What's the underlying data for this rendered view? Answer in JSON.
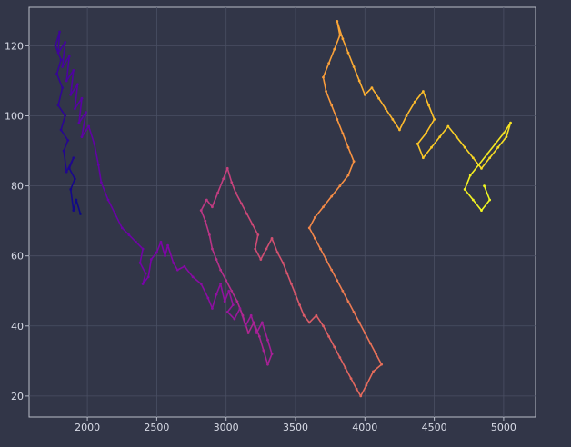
{
  "colors": {
    "background": "#323648",
    "plot_background": "#323648",
    "grid": "#4a4f63",
    "axes_frame": "#b9bdc9",
    "tick_text": "#d8dbe6",
    "colormap": "plasma"
  },
  "chart_data": {
    "type": "line",
    "title": "",
    "xlabel": "",
    "ylabel": "",
    "xlim": [
      1580,
      5230
    ],
    "ylim": [
      14,
      131
    ],
    "xticks": [
      2000,
      2500,
      3000,
      3500,
      4000,
      4500,
      5000
    ],
    "xtick_labels": [
      "2000",
      "2500",
      "3000",
      "3500",
      "4000",
      "4500",
      "5000"
    ],
    "yticks": [
      20,
      40,
      60,
      80,
      100,
      120
    ],
    "ytick_labels": [
      "20",
      "40",
      "60",
      "80",
      "100",
      "120"
    ],
    "grid": true,
    "legend": false,
    "color_encoding": "path progression, dark purple (start) to yellow (end)",
    "series": [
      {
        "points": [
          [
            1950,
            72
          ],
          [
            1920,
            76
          ],
          [
            1900,
            73
          ],
          [
            1880,
            79
          ],
          [
            1910,
            82
          ],
          [
            1870,
            85
          ],
          [
            1900,
            88
          ],
          [
            1850,
            84
          ],
          [
            1830,
            90
          ],
          [
            1860,
            93
          ],
          [
            1810,
            96
          ],
          [
            1840,
            100
          ],
          [
            1790,
            103
          ],
          [
            1820,
            108
          ],
          [
            1780,
            112
          ],
          [
            1810,
            116
          ],
          [
            1770,
            120
          ],
          [
            1800,
            124
          ],
          [
            1790,
            118
          ],
          [
            1840,
            121
          ],
          [
            1820,
            114
          ],
          [
            1870,
            117
          ],
          [
            1850,
            110
          ],
          [
            1900,
            113
          ],
          [
            1880,
            106
          ],
          [
            1930,
            109
          ],
          [
            1910,
            102
          ],
          [
            1960,
            105
          ],
          [
            1940,
            98
          ],
          [
            1990,
            101
          ],
          [
            1960,
            94
          ],
          [
            2010,
            97
          ],
          [
            2050,
            92
          ],
          [
            2080,
            86
          ],
          [
            2100,
            81
          ],
          [
            2150,
            76
          ],
          [
            2200,
            72
          ],
          [
            2250,
            68
          ],
          [
            2300,
            66
          ],
          [
            2350,
            64
          ],
          [
            2400,
            62
          ],
          [
            2380,
            58
          ],
          [
            2420,
            55
          ],
          [
            2400,
            52
          ],
          [
            2440,
            54
          ],
          [
            2460,
            59
          ],
          [
            2500,
            61
          ],
          [
            2530,
            64
          ],
          [
            2560,
            60
          ],
          [
            2580,
            63
          ],
          [
            2620,
            58
          ],
          [
            2650,
            56
          ],
          [
            2700,
            57
          ],
          [
            2760,
            54
          ],
          [
            2820,
            52
          ],
          [
            2870,
            48
          ],
          [
            2900,
            45
          ],
          [
            2930,
            49
          ],
          [
            2960,
            52
          ],
          [
            2990,
            47
          ],
          [
            3020,
            50
          ],
          [
            3050,
            46
          ],
          [
            3010,
            44
          ],
          [
            3060,
            42
          ],
          [
            3100,
            45
          ],
          [
            3140,
            40
          ],
          [
            3180,
            43
          ],
          [
            3220,
            38
          ],
          [
            3260,
            41
          ],
          [
            3300,
            36
          ],
          [
            3330,
            32
          ],
          [
            3300,
            29
          ],
          [
            3270,
            33
          ],
          [
            3240,
            37
          ],
          [
            3200,
            41
          ],
          [
            3160,
            38
          ],
          [
            3120,
            43
          ],
          [
            3080,
            47
          ],
          [
            3040,
            50
          ],
          [
            3000,
            53
          ],
          [
            2960,
            56
          ],
          [
            2930,
            59
          ],
          [
            2900,
            62
          ],
          [
            2880,
            66
          ],
          [
            2850,
            70
          ],
          [
            2820,
            73
          ],
          [
            2860,
            76
          ],
          [
            2900,
            74
          ],
          [
            2940,
            78
          ],
          [
            2980,
            82
          ],
          [
            3010,
            85
          ],
          [
            3040,
            81
          ],
          [
            3070,
            78
          ],
          [
            3110,
            75
          ],
          [
            3150,
            72
          ],
          [
            3190,
            69
          ],
          [
            3230,
            66
          ],
          [
            3210,
            62
          ],
          [
            3250,
            59
          ],
          [
            3290,
            62
          ],
          [
            3330,
            65
          ],
          [
            3370,
            61
          ],
          [
            3410,
            58
          ],
          [
            3440,
            55
          ],
          [
            3470,
            52
          ],
          [
            3500,
            49
          ],
          [
            3530,
            46
          ],
          [
            3560,
            43
          ],
          [
            3600,
            41
          ],
          [
            3650,
            43
          ],
          [
            3700,
            40
          ],
          [
            3740,
            37
          ],
          [
            3780,
            34
          ],
          [
            3820,
            31
          ],
          [
            3860,
            28
          ],
          [
            3900,
            25
          ],
          [
            3940,
            22
          ],
          [
            3970,
            20
          ],
          [
            4010,
            23
          ],
          [
            4060,
            27
          ],
          [
            4120,
            29
          ],
          [
            4080,
            32
          ],
          [
            4040,
            35
          ],
          [
            4000,
            38
          ],
          [
            3960,
            41
          ],
          [
            3920,
            44
          ],
          [
            3880,
            47
          ],
          [
            3840,
            50
          ],
          [
            3800,
            53
          ],
          [
            3760,
            56
          ],
          [
            3720,
            59
          ],
          [
            3680,
            62
          ],
          [
            3640,
            65
          ],
          [
            3600,
            68
          ],
          [
            3640,
            71
          ],
          [
            3700,
            74
          ],
          [
            3760,
            77
          ],
          [
            3820,
            80
          ],
          [
            3880,
            83
          ],
          [
            3920,
            87
          ],
          [
            3880,
            91
          ],
          [
            3840,
            95
          ],
          [
            3800,
            99
          ],
          [
            3760,
            103
          ],
          [
            3720,
            107
          ],
          [
            3700,
            111
          ],
          [
            3740,
            115
          ],
          [
            3780,
            119
          ],
          [
            3820,
            123
          ],
          [
            3800,
            127
          ],
          [
            3840,
            122
          ],
          [
            3880,
            118
          ],
          [
            3920,
            114
          ],
          [
            3960,
            110
          ],
          [
            4000,
            106
          ],
          [
            4050,
            108
          ],
          [
            4100,
            105
          ],
          [
            4150,
            102
          ],
          [
            4200,
            99
          ],
          [
            4250,
            96
          ],
          [
            4300,
            100
          ],
          [
            4360,
            104
          ],
          [
            4420,
            107
          ],
          [
            4460,
            103
          ],
          [
            4500,
            99
          ],
          [
            4440,
            95
          ],
          [
            4380,
            92
          ],
          [
            4420,
            88
          ],
          [
            4480,
            91
          ],
          [
            4540,
            94
          ],
          [
            4600,
            97
          ],
          [
            4660,
            94
          ],
          [
            4720,
            91
          ],
          [
            4780,
            88
          ],
          [
            4840,
            85
          ],
          [
            4900,
            88
          ],
          [
            4960,
            91
          ],
          [
            5020,
            94
          ],
          [
            5050,
            98
          ],
          [
            5000,
            95
          ],
          [
            4940,
            92
          ],
          [
            4880,
            89
          ],
          [
            4820,
            86
          ],
          [
            4760,
            83
          ],
          [
            4720,
            79
          ],
          [
            4780,
            76
          ],
          [
            4840,
            73
          ],
          [
            4900,
            76
          ],
          [
            4860,
            80
          ]
        ]
      }
    ]
  }
}
